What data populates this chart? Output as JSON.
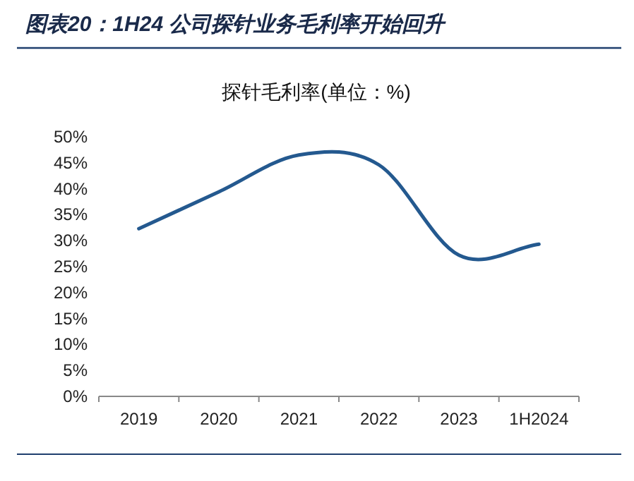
{
  "chart_data": {
    "type": "line",
    "title": "图表20：1H24 公司探针业务毛利率开始回升",
    "subtitle": "探针毛利率(单位：%)",
    "categories": [
      "2019",
      "2020",
      "2021",
      "2022",
      "2023",
      "1H2024"
    ],
    "series": [
      {
        "color": "#24598f",
        "values": [
          32.3,
          39.4,
          46.5,
          44.6,
          27.2,
          29.3
        ]
      }
    ],
    "ylim": [
      0,
      50
    ],
    "yticks": [
      {
        "value": 0,
        "label": "0%"
      },
      {
        "value": 5,
        "label": "5%"
      },
      {
        "value": 10,
        "label": "10%"
      },
      {
        "value": 15,
        "label": "15%"
      },
      {
        "value": 20,
        "label": "20%"
      },
      {
        "value": 25,
        "label": "25%"
      },
      {
        "value": 30,
        "label": "30%"
      },
      {
        "value": 35,
        "label": "35%"
      },
      {
        "value": 40,
        "label": "40%"
      },
      {
        "value": 45,
        "label": "45%"
      },
      {
        "value": 50,
        "label": "50%"
      }
    ],
    "grid": false,
    "marker": "none",
    "line_style": "solid"
  }
}
